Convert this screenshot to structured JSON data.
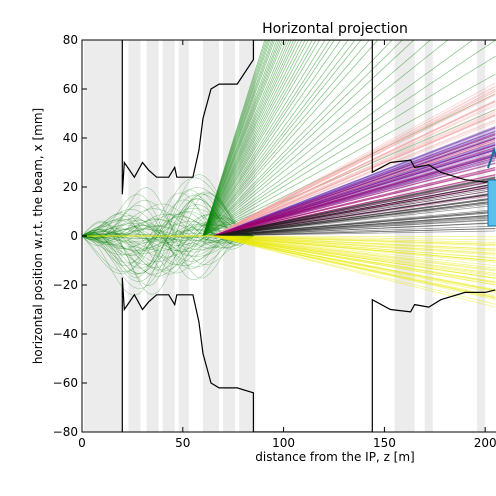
{
  "chart_data": {
    "type": "line",
    "title": "Horizontal projection",
    "xlabel": "distance from the IP, z [m]",
    "ylabel": "horizontal position w.r.t. the beam, x [mm]",
    "xlim": [
      0,
      205
    ],
    "ylim": [
      -80,
      80
    ],
    "xticks": [
      0,
      50,
      100,
      150,
      200
    ],
    "yticks": [
      -80,
      -60,
      -40,
      -20,
      0,
      20,
      40,
      60,
      80
    ],
    "xtick_labels": [
      "0",
      "50",
      "100",
      "150",
      "200"
    ],
    "ytick_labels": [
      "−80",
      "−60",
      "−40",
      "−20",
      "0",
      "20",
      "40",
      "60",
      "80"
    ],
    "grid": false,
    "shaded_regions": [
      [
        1,
        20
      ],
      [
        23,
        29
      ],
      [
        32,
        38
      ],
      [
        40,
        46
      ],
      [
        48,
        53
      ],
      [
        60,
        68
      ],
      [
        70,
        76
      ],
      [
        78,
        86
      ],
      [
        155,
        165
      ],
      [
        170,
        174
      ],
      [
        196,
        200
      ]
    ],
    "aperture_upper": [
      [
        20,
        80
      ],
      [
        20,
        17
      ],
      [
        21,
        30
      ],
      [
        26,
        24
      ],
      [
        30,
        30
      ],
      [
        33,
        27
      ],
      [
        37,
        24
      ],
      [
        43,
        24
      ],
      [
        46,
        28
      ],
      [
        47,
        24
      ],
      [
        55,
        24
      ],
      [
        58,
        35
      ],
      [
        60,
        48
      ],
      [
        64,
        60
      ],
      [
        68,
        62
      ],
      [
        77,
        62
      ],
      [
        85,
        72
      ],
      [
        85,
        80
      ],
      [
        144,
        80
      ],
      [
        144,
        26
      ],
      [
        153,
        30
      ],
      [
        163,
        31
      ],
      [
        165,
        28
      ],
      [
        172,
        29
      ],
      [
        178,
        26
      ],
      [
        190,
        23
      ],
      [
        200,
        22
      ],
      [
        205,
        23
      ]
    ],
    "aperture_lower": [
      [
        20,
        -80
      ],
      [
        20,
        -17
      ],
      [
        21,
        -30
      ],
      [
        26,
        -24
      ],
      [
        30,
        -30
      ],
      [
        33,
        -27
      ],
      [
        37,
        -24
      ],
      [
        43,
        -24
      ],
      [
        46,
        -28
      ],
      [
        47,
        -24
      ],
      [
        55,
        -24
      ],
      [
        58,
        -35
      ],
      [
        60,
        -48
      ],
      [
        64,
        -60
      ],
      [
        68,
        -62
      ],
      [
        77,
        -62
      ],
      [
        85,
        -64
      ],
      [
        85,
        -80
      ],
      [
        144,
        -80
      ],
      [
        144,
        -26
      ],
      [
        153,
        -30
      ],
      [
        163,
        -31
      ],
      [
        165,
        -28
      ],
      [
        172,
        -29
      ],
      [
        178,
        -26
      ],
      [
        190,
        -23
      ],
      [
        200,
        -23
      ],
      [
        205,
        -22
      ]
    ],
    "series": [
      {
        "color": "#008000",
        "z_start": 60,
        "slope_min": 0.35,
        "slope_max": 2.6,
        "z_end": 205
      },
      {
        "color": "#f4a0a0",
        "z_start": 65,
        "slope_min": 0.25,
        "slope_max": 0.45,
        "z_end": 205
      },
      {
        "color": "#6a4fd0",
        "z_start": 65,
        "slope_min": 0.22,
        "slope_max": 0.32,
        "z_end": 205
      },
      {
        "color": "#a0006a",
        "z_start": 65,
        "slope_min": 0.12,
        "slope_max": 0.3,
        "z_end": 205
      },
      {
        "color": "#202020",
        "z_start": 65,
        "slope_min": 0.02,
        "slope_max": 0.18,
        "z_end": 205
      },
      {
        "color": "#e8e800",
        "z_start": 65,
        "slope_min": -0.2,
        "slope_max": -0.01,
        "z_end": 205
      }
    ],
    "early_oscillations": {
      "color": "#008000",
      "z_range": [
        0,
        85
      ],
      "max_amplitude": 70
    }
  }
}
